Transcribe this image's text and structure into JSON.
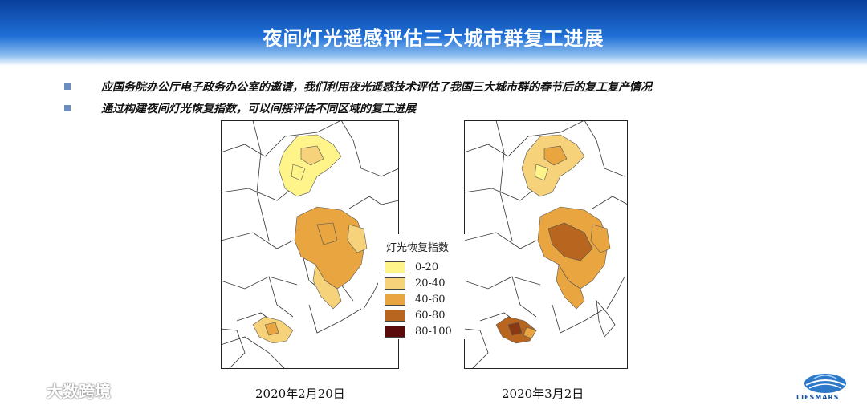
{
  "title": "夜间灯光遥感评估三大城市群复工进展",
  "bullets": [
    "应国务院办公厅电子政务办公室的邀请，我们利用夜光遥感技术评估了我国三大城市群的春节后的复工复产情况",
    "通过构建夜间灯光恢复指数，可以间接评估不同区域的复工进展"
  ],
  "legend": {
    "title": "灯光恢复指数",
    "items": [
      {
        "label": "0-20",
        "color": "#fff48a"
      },
      {
        "label": "20-40",
        "color": "#f6d27a"
      },
      {
        "label": "40-60",
        "color": "#e9a640"
      },
      {
        "label": "60-80",
        "color": "#b8661f"
      },
      {
        "label": "80-100",
        "color": "#5a0a0a"
      }
    ]
  },
  "maps": [
    {
      "caption": "2020年2月20日",
      "beijing_class": "0-20",
      "yangtze_class": "40-60",
      "pearl_class": "20-40"
    },
    {
      "caption": "2020年3月2日",
      "beijing_class": "20-40",
      "yangtze_class": "60-80",
      "pearl_class": "60-80"
    }
  ],
  "watermark": "大数跨境",
  "logo_text": "LIESMARS"
}
